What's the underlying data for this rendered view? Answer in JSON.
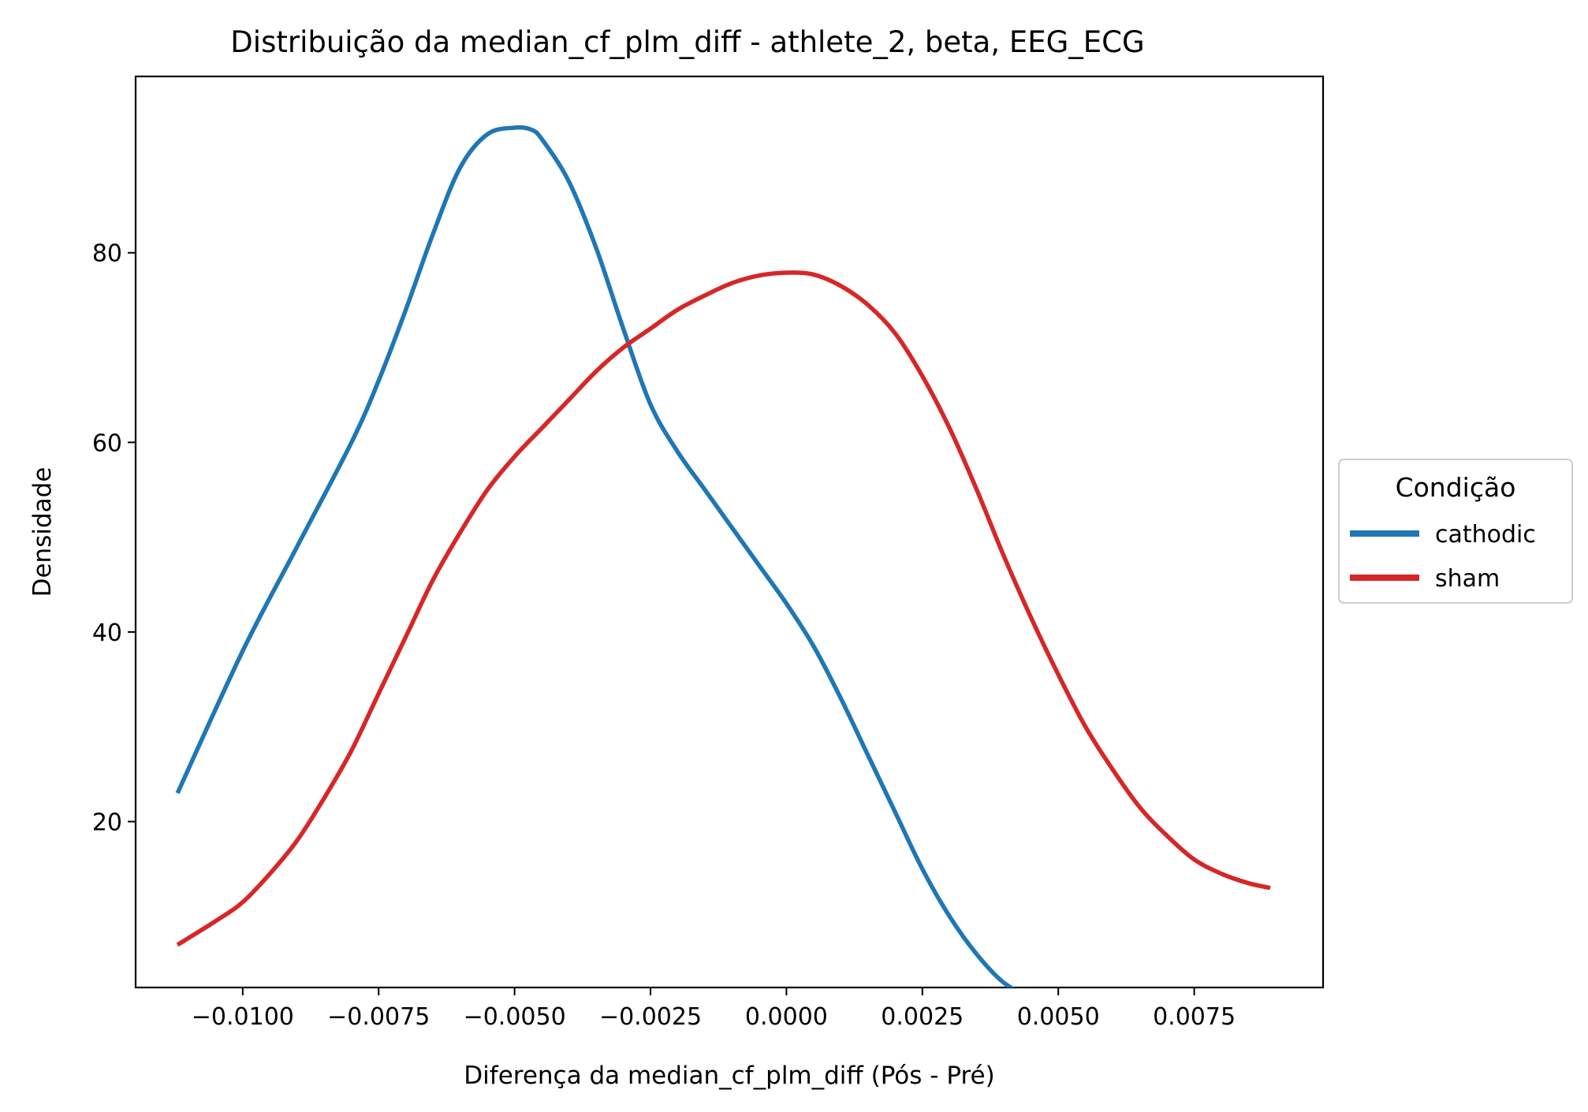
{
  "chart_data": {
    "type": "line",
    "title": "Distribuição da median_cf_plm_diff - athlete_2, beta, EEG_ECG",
    "xlabel": "Diferença da median_cf_plm_diff (Pós - Pré)",
    "ylabel": "Densidade",
    "xlim": [
      -0.01197,
      0.00987
    ],
    "ylim": [
      2.5,
      98.6
    ],
    "x_ticks": [
      -0.01,
      -0.0075,
      -0.005,
      -0.0025,
      0.0,
      0.0025,
      0.005,
      0.0075
    ],
    "x_tick_labels": [
      "−0.0100",
      "−0.0075",
      "−0.0050",
      "−0.0025",
      "0.0000",
      "0.0025",
      "0.0050",
      "0.0075"
    ],
    "y_ticks": [
      20,
      40,
      60,
      80
    ],
    "y_tick_labels": [
      "20",
      "40",
      "60",
      "80"
    ],
    "grid": false,
    "legend": {
      "title": "Condição",
      "placement": "center-right-outside"
    },
    "series": [
      {
        "name": "cathodic",
        "color": "#1f77b4",
        "x": [
          -0.0112,
          -0.01,
          -0.009,
          -0.008,
          -0.0075,
          -0.007,
          -0.0065,
          -0.006,
          -0.0055,
          -0.005,
          -0.0047,
          -0.0045,
          -0.004,
          -0.0035,
          -0.003,
          -0.0025,
          -0.002,
          -0.0015,
          -0.001,
          -0.0005,
          0.0,
          0.0005,
          0.001,
          0.0015,
          0.002,
          0.0025,
          0.003,
          0.0035,
          0.004,
          0.0045,
          0.005,
          0.0055,
          0.0059
        ],
        "y": [
          23.0,
          38.0,
          49.0,
          60.0,
          66.5,
          74.0,
          82.0,
          89.0,
          92.5,
          93.2,
          93.0,
          92.0,
          87.5,
          80.5,
          72.0,
          64.0,
          59.0,
          55.0,
          51.0,
          47.0,
          43.0,
          38.5,
          33.0,
          27.0,
          21.0,
          15.0,
          10.0,
          6.0,
          3.0,
          1.5,
          0.7,
          0.2,
          0.0
        ]
      },
      {
        "name": "sham",
        "color": "#d62728",
        "x": [
          -0.0112,
          -0.0105,
          -0.01,
          -0.0095,
          -0.009,
          -0.0085,
          -0.008,
          -0.0075,
          -0.007,
          -0.0065,
          -0.006,
          -0.0055,
          -0.005,
          -0.0045,
          -0.004,
          -0.0035,
          -0.003,
          -0.0025,
          -0.002,
          -0.0015,
          -0.001,
          -0.0005,
          0.0,
          0.0005,
          0.001,
          0.0015,
          0.002,
          0.0025,
          0.003,
          0.0035,
          0.004,
          0.0045,
          0.005,
          0.0055,
          0.006,
          0.0065,
          0.007,
          0.0075,
          0.008,
          0.0085,
          0.0089
        ],
        "y": [
          7.0,
          9.5,
          11.5,
          14.5,
          18.0,
          22.5,
          27.5,
          33.5,
          39.5,
          45.5,
          50.5,
          55.0,
          58.5,
          61.5,
          64.5,
          67.5,
          70.0,
          72.0,
          74.0,
          75.5,
          76.8,
          77.6,
          77.9,
          77.7,
          76.5,
          74.5,
          71.5,
          67.0,
          61.5,
          55.0,
          48.0,
          41.5,
          35.5,
          30.0,
          25.5,
          21.5,
          18.5,
          16.0,
          14.5,
          13.5,
          13.0
        ]
      }
    ]
  }
}
